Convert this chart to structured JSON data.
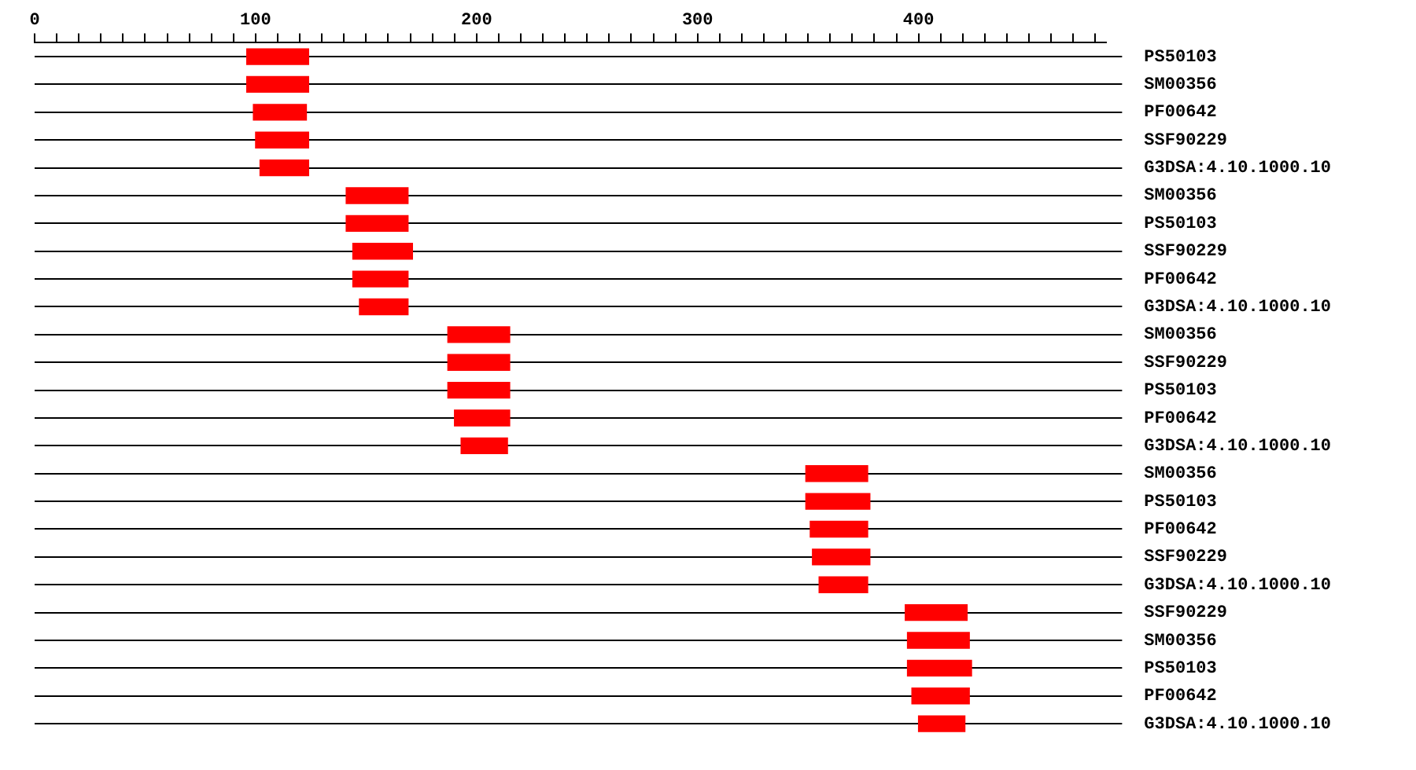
{
  "chart_data": {
    "type": "bar",
    "orientation": "horizontal",
    "grid": "y",
    "legend": false,
    "categories": [
      "PS50103",
      "SM00356",
      "PF00642",
      "SSF90229",
      "G3DSA:4.10.1000.10",
      "SM00356",
      "PS50103",
      "SSF90229",
      "PF00642",
      "G3DSA:4.10.1000.10",
      "SM00356",
      "SSF90229",
      "PS50103",
      "PF00642",
      "G3DSA:4.10.1000.10",
      "SM00356",
      "PS50103",
      "PF00642",
      "SSF90229",
      "G3DSA:4.10.1000.10",
      "SSF90229",
      "SM00356",
      "PS50103",
      "PF00642",
      "G3DSA:4.10.1000.10"
    ],
    "base": [
      96,
      96,
      99,
      100,
      102,
      141,
      141,
      144,
      144,
      147,
      187,
      187,
      187,
      190,
      193,
      349,
      349,
      351,
      352,
      355,
      394,
      395,
      395,
      397,
      400
    ],
    "values": [
      28,
      28,
      24,
      24,
      22,
      28,
      28,
      27,
      25,
      22,
      28,
      28,
      28,
      25,
      21,
      28,
      29,
      26,
      26,
      22,
      28,
      28,
      29,
      26,
      21
    ],
    "color": "#ff0000",
    "xlim": [
      0,
      485
    ],
    "xticks": [
      0,
      {
        "value": 10,
        "label": null
      },
      {
        "value": 20,
        "label": null
      },
      {
        "value": 30,
        "label": null
      },
      {
        "value": 40,
        "label": null
      },
      {
        "value": 50,
        "label": null
      },
      {
        "value": 60,
        "label": null
      },
      {
        "value": 70,
        "label": null
      },
      {
        "value": 80,
        "label": null
      },
      {
        "value": 90,
        "label": null
      },
      100,
      {
        "value": 110,
        "label": null
      },
      {
        "value": 120,
        "label": null
      },
      {
        "value": 130,
        "label": null
      },
      {
        "value": 140,
        "label": null
      },
      {
        "value": 150,
        "label": null
      },
      {
        "value": 160,
        "label": null
      },
      {
        "value": 170,
        "label": null
      },
      {
        "value": 180,
        "label": null
      },
      {
        "value": 190,
        "label": null
      },
      200,
      {
        "value": 210,
        "label": null
      },
      {
        "value": 220,
        "label": null
      },
      {
        "value": 230,
        "label": null
      },
      {
        "value": 240,
        "label": null
      },
      {
        "value": 250,
        "label": null
      },
      {
        "value": 260,
        "label": null
      },
      {
        "value": 270,
        "label": null
      },
      {
        "value": 280,
        "label": null
      },
      {
        "value": 290,
        "label": null
      },
      300,
      {
        "value": 310,
        "label": null
      },
      {
        "value": 320,
        "label": null
      },
      {
        "value": 330,
        "label": null
      },
      {
        "value": 340,
        "label": null
      },
      {
        "value": 350,
        "label": null
      },
      {
        "value": 360,
        "label": null
      },
      {
        "value": 370,
        "label": null
      },
      {
        "value": 380,
        "label": null
      },
      {
        "value": 390,
        "label": null
      },
      400,
      {
        "value": 410,
        "label": null
      },
      {
        "value": 420,
        "label": null
      },
      {
        "value": 430,
        "label": null
      },
      {
        "value": 440,
        "label": null
      },
      {
        "value": 450,
        "label": null
      },
      {
        "value": 460,
        "label": null
      },
      {
        "value": 470,
        "label": null
      },
      {
        "value": 480,
        "label": null
      }
    ]
  }
}
